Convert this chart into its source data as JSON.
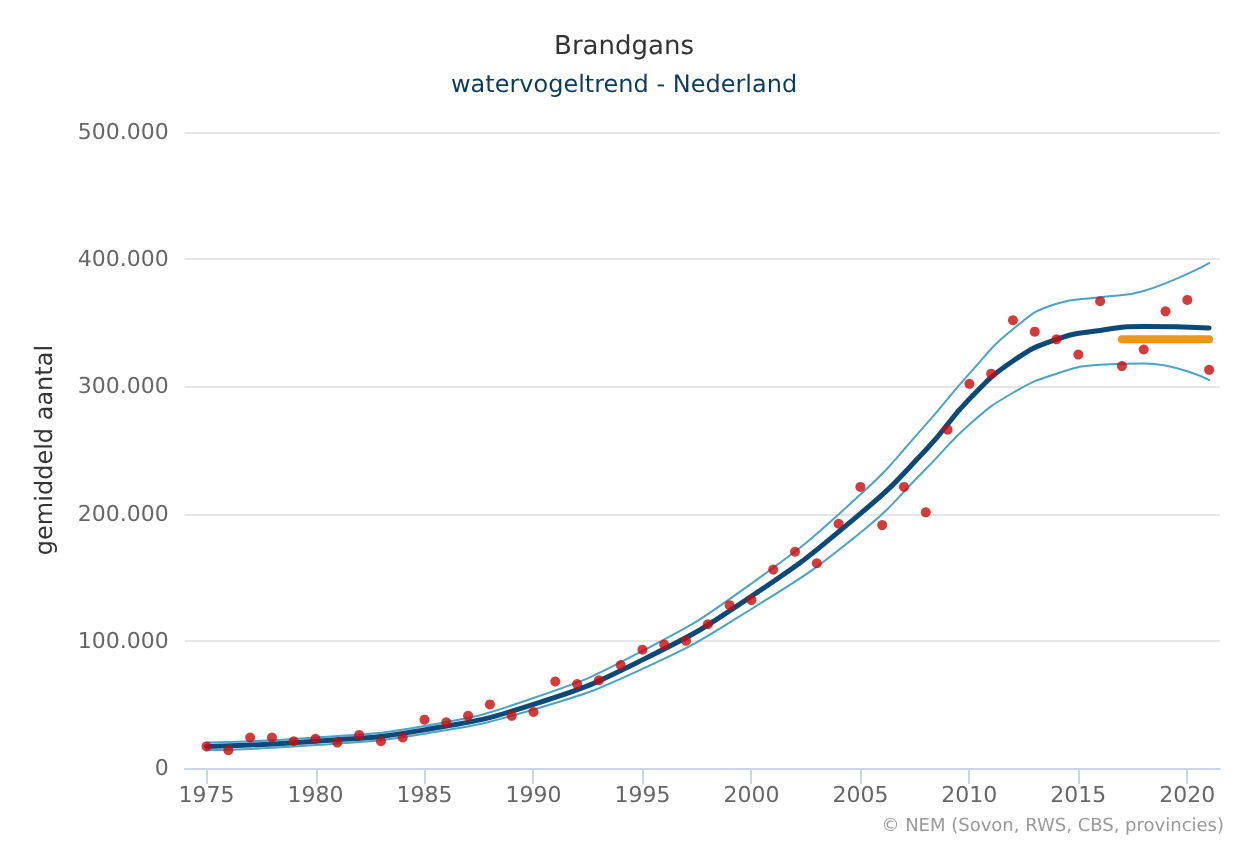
{
  "chart_data": {
    "type": "scatter",
    "title": "Brandgans",
    "subtitle": "watervogeltrend - Nederland",
    "ylabel": "gemiddeld aantal",
    "annotations": [
      "© NEM (Sovon, RWS, CBS, provincies)"
    ],
    "xlim": [
      1974,
      2021.5
    ],
    "xticks": [
      1975,
      1980,
      1985,
      1990,
      1995,
      2000,
      2005,
      2010,
      2015,
      2020
    ],
    "ylim": [
      0,
      500000
    ],
    "yticks": [
      {
        "value": 0,
        "label": "0"
      },
      {
        "value": 100000,
        "label": "100.000"
      },
      {
        "value": 200000,
        "label": "200.000"
      },
      {
        "value": 300000,
        "label": "300.000"
      },
      {
        "value": 400000,
        "label": "400.000"
      },
      {
        "value": 500000,
        "label": "500.000"
      }
    ],
    "grid": "y",
    "series": [
      {
        "type": "line",
        "color": "#4aa3c8",
        "line_style": "solid",
        "marker": "none",
        "x": [
          1975,
          1980,
          1985,
          1990,
          1995,
          2000,
          2005,
          2008,
          2010,
          2012,
          2014,
          2016,
          2018,
          2021
        ],
        "values": [
          14000,
          18000,
          27000,
          46000,
          78000,
          125000,
          185000,
          235000,
          270000,
          295000,
          310000,
          317000,
          318000,
          305000
        ]
      },
      {
        "type": "line",
        "color": "#4aa3c8",
        "line_style": "solid",
        "marker": "none",
        "x": [
          1975,
          1980,
          1985,
          1990,
          1995,
          2000,
          2005,
          2008,
          2010,
          2012,
          2014,
          2016,
          2018,
          2021
        ],
        "values": [
          20000,
          24000,
          33000,
          55000,
          92000,
          145000,
          215000,
          270000,
          310000,
          345000,
          365000,
          370000,
          375000,
          397000
        ]
      },
      {
        "type": "line",
        "color": "#0b4a78",
        "line_style": "solid",
        "marker": "none",
        "x": [
          1975,
          1980,
          1985,
          1990,
          1995,
          2000,
          2005,
          2008,
          2010,
          2012,
          2014,
          2016,
          2018,
          2021
        ],
        "values": [
          17000,
          21000,
          30000,
          50000,
          85000,
          135000,
          200000,
          250000,
          290000,
          320000,
          337000,
          344000,
          347000,
          346000
        ]
      },
      {
        "type": "line",
        "color": "#f0960f",
        "line_style": "solid",
        "marker": "none",
        "x": [
          2017,
          2021
        ],
        "values": [
          337000,
          337000
        ]
      },
      {
        "color": "#cc0a0a",
        "marker": "circle",
        "x": [
          1975,
          1976,
          1977,
          1978,
          1979,
          1980,
          1981,
          1982,
          1983,
          1984,
          1985,
          1986,
          1987,
          1988,
          1989,
          1990,
          1991,
          1992,
          1993,
          1994,
          1995,
          1996,
          1997,
          1998,
          1999,
          2000,
          2001,
          2002,
          2003,
          2004,
          2005,
          2006,
          2007,
          2008,
          2009,
          2010,
          2011,
          2012,
          2013,
          2014,
          2015,
          2016,
          2017,
          2018,
          2019,
          2020,
          2021
        ],
        "values": [
          17000,
          14000,
          24000,
          24000,
          21000,
          23000,
          20000,
          26000,
          21000,
          24000,
          38000,
          36000,
          41000,
          50000,
          41000,
          44000,
          68000,
          66000,
          69000,
          81000,
          93000,
          97000,
          100000,
          113000,
          128000,
          132000,
          156000,
          170000,
          161000,
          192000,
          221000,
          191000,
          221000,
          201000,
          266000,
          302000,
          310000,
          352000,
          343000,
          337000,
          325000,
          367000,
          316000,
          329000,
          359000,
          368000,
          313000
        ]
      }
    ]
  }
}
